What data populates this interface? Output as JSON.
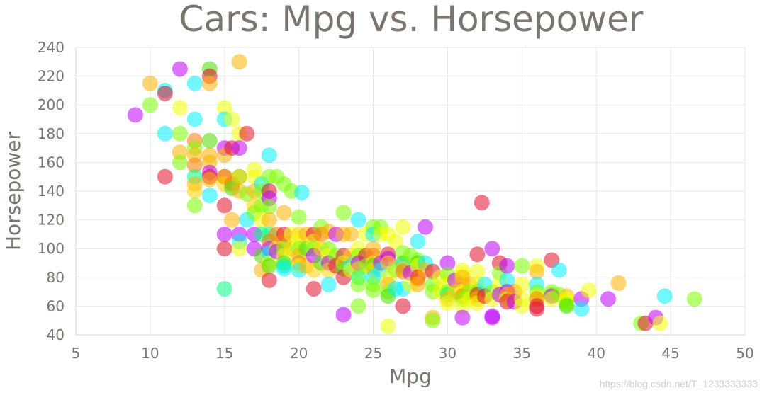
{
  "chart_data": {
    "type": "scatter",
    "title": "Cars: Mpg vs. Horsepower",
    "xlabel": "Mpg",
    "ylabel": "Horsepower",
    "xlim": [
      5,
      50
    ],
    "ylim": [
      40,
      240
    ],
    "xticks": [
      5,
      10,
      15,
      20,
      25,
      30,
      35,
      40,
      45,
      50
    ],
    "yticks": [
      40,
      60,
      80,
      100,
      120,
      140,
      160,
      180,
      200,
      220,
      240
    ],
    "grid": true,
    "marker_opacity": 0.55,
    "palette": [
      "#ff7a00",
      "#ffb000",
      "#ffd400",
      "#f0ff00",
      "#7aff00",
      "#4bdc00",
      "#00ff80",
      "#00f0ff",
      "#c000ff",
      "#e0102a"
    ],
    "points": [
      [
        9,
        193,
        8
      ],
      [
        10,
        215,
        1
      ],
      [
        10,
        200,
        4
      ],
      [
        11,
        210,
        7
      ],
      [
        11,
        208,
        9
      ],
      [
        11,
        180,
        7
      ],
      [
        11,
        150,
        9
      ],
      [
        12,
        225,
        8
      ],
      [
        12,
        198,
        3
      ],
      [
        12,
        180,
        4
      ],
      [
        12,
        167,
        1
      ],
      [
        12,
        160,
        4
      ],
      [
        13,
        215,
        7
      ],
      [
        13,
        190,
        7
      ],
      [
        13,
        175,
        0
      ],
      [
        13,
        170,
        4
      ],
      [
        13,
        165,
        1
      ],
      [
        13,
        158,
        0
      ],
      [
        13,
        150,
        6
      ],
      [
        13,
        145,
        1
      ],
      [
        13,
        140,
        2
      ],
      [
        13,
        130,
        4
      ],
      [
        14,
        225,
        5
      ],
      [
        14,
        220,
        9
      ],
      [
        14,
        215,
        1
      ],
      [
        14,
        175,
        5
      ],
      [
        14,
        165,
        1
      ],
      [
        14,
        160,
        1
      ],
      [
        14,
        153,
        8
      ],
      [
        14,
        150,
        9
      ],
      [
        14,
        148,
        1
      ],
      [
        14,
        137,
        7
      ],
      [
        15,
        198,
        3
      ],
      [
        15,
        190,
        7
      ],
      [
        15,
        170,
        8
      ],
      [
        15,
        165,
        1
      ],
      [
        15,
        150,
        9
      ],
      [
        15,
        150,
        1
      ],
      [
        15,
        145,
        2
      ],
      [
        15,
        130,
        9
      ],
      [
        15,
        110,
        8
      ],
      [
        15,
        100,
        9
      ],
      [
        15,
        72,
        6
      ],
      [
        15.5,
        190,
        3
      ],
      [
        15.5,
        170,
        9
      ],
      [
        15.5,
        145,
        0
      ],
      [
        15.5,
        142,
        5
      ],
      [
        15.5,
        120,
        1
      ],
      [
        16,
        230,
        1
      ],
      [
        16,
        180,
        3
      ],
      [
        16,
        170,
        8
      ],
      [
        16,
        150,
        5
      ],
      [
        16,
        150,
        2
      ],
      [
        16,
        140,
        1
      ],
      [
        16,
        110,
        8
      ],
      [
        16,
        105,
        7
      ],
      [
        16,
        100,
        3
      ],
      [
        16.5,
        180,
        9
      ],
      [
        16.5,
        138,
        4
      ],
      [
        16.5,
        120,
        7
      ],
      [
        17,
        155,
        3
      ],
      [
        17,
        150,
        3
      ],
      [
        17,
        140,
        1
      ],
      [
        17,
        130,
        2
      ],
      [
        17,
        125,
        4
      ],
      [
        17,
        110,
        8
      ],
      [
        17,
        100,
        8
      ],
      [
        17.5,
        145,
        7
      ],
      [
        17.5,
        140,
        4
      ],
      [
        17.5,
        130,
        4
      ],
      [
        17.5,
        120,
        3
      ],
      [
        17.5,
        110,
        6
      ],
      [
        17.5,
        95,
        5
      ],
      [
        17.5,
        85,
        1
      ],
      [
        18,
        165,
        7
      ],
      [
        18,
        150,
        4
      ],
      [
        18,
        140,
        9
      ],
      [
        18,
        135,
        8
      ],
      [
        18,
        129,
        4
      ],
      [
        18,
        120,
        1
      ],
      [
        18,
        110,
        6
      ],
      [
        18,
        105,
        0
      ],
      [
        18,
        100,
        8
      ],
      [
        18,
        97,
        7
      ],
      [
        18,
        90,
        3
      ],
      [
        18,
        88,
        5
      ],
      [
        18,
        78,
        9
      ],
      [
        18.5,
        150,
        4
      ],
      [
        18.5,
        110,
        0
      ],
      [
        18.5,
        100,
        3
      ],
      [
        18.5,
        98,
        8
      ],
      [
        19,
        145,
        4
      ],
      [
        19,
        125,
        1
      ],
      [
        19,
        110,
        9
      ],
      [
        19,
        105,
        0
      ],
      [
        19,
        100,
        4
      ],
      [
        19,
        95,
        3
      ],
      [
        19,
        90,
        5
      ],
      [
        19,
        88,
        6
      ],
      [
        19,
        86,
        7
      ],
      [
        19.5,
        140,
        4
      ],
      [
        19.5,
        110,
        3
      ],
      [
        19.5,
        100,
        2
      ],
      [
        20,
        122,
        4
      ],
      [
        20,
        110,
        2
      ],
      [
        20,
        105,
        3
      ],
      [
        20,
        100,
        4
      ],
      [
        20,
        95,
        1
      ],
      [
        20,
        90,
        0
      ],
      [
        20,
        88,
        3
      ],
      [
        20,
        85,
        7
      ],
      [
        20.2,
        139,
        7
      ],
      [
        20.5,
        110,
        1
      ],
      [
        20.5,
        100,
        5
      ],
      [
        20.5,
        88,
        1
      ],
      [
        21,
        110,
        9
      ],
      [
        21,
        105,
        3
      ],
      [
        21,
        100,
        4
      ],
      [
        21,
        95,
        8
      ],
      [
        21,
        85,
        2
      ],
      [
        21,
        72,
        9
      ],
      [
        21.5,
        115,
        4
      ],
      [
        21.5,
        110,
        0
      ],
      [
        21.5,
        100,
        2
      ],
      [
        21.5,
        90,
        5
      ],
      [
        22,
        112,
        1
      ],
      [
        22,
        100,
        4
      ],
      [
        22,
        95,
        3
      ],
      [
        22,
        90,
        8
      ],
      [
        22,
        85,
        2
      ],
      [
        22,
        75,
        7
      ],
      [
        22.5,
        110,
        8
      ],
      [
        22.5,
        95,
        4
      ],
      [
        22.5,
        88,
        9
      ],
      [
        23,
        125,
        4
      ],
      [
        23,
        110,
        1
      ],
      [
        23,
        95,
        9
      ],
      [
        23,
        90,
        3
      ],
      [
        23,
        86,
        5
      ],
      [
        23,
        80,
        9
      ],
      [
        23,
        54,
        8
      ],
      [
        23.5,
        110,
        1
      ],
      [
        23.5,
        95,
        2
      ],
      [
        23.5,
        88,
        7
      ],
      [
        23.5,
        85,
        3
      ],
      [
        24,
        120,
        7
      ],
      [
        24,
        100,
        3
      ],
      [
        24,
        95,
        4
      ],
      [
        24,
        90,
        8
      ],
      [
        24,
        86,
        2
      ],
      [
        24,
        80,
        6
      ],
      [
        24,
        75,
        4
      ],
      [
        24,
        60,
        4
      ],
      [
        24.5,
        110,
        3
      ],
      [
        24.5,
        95,
        9
      ],
      [
        24.5,
        88,
        4
      ],
      [
        25,
        115,
        4
      ],
      [
        25,
        110,
        7
      ],
      [
        25,
        100,
        1
      ],
      [
        25,
        95,
        0
      ],
      [
        25,
        90,
        3
      ],
      [
        25,
        88,
        5
      ],
      [
        25,
        85,
        2
      ],
      [
        25,
        80,
        7
      ],
      [
        25,
        75,
        4
      ],
      [
        25,
        71,
        4
      ],
      [
        25.5,
        115,
        4
      ],
      [
        25.5,
        110,
        3
      ],
      [
        25.5,
        90,
        8
      ],
      [
        25.5,
        85,
        7
      ],
      [
        26,
        110,
        3
      ],
      [
        26,
        96,
        9
      ],
      [
        26,
        93,
        8
      ],
      [
        26,
        90,
        2
      ],
      [
        26,
        80,
        3
      ],
      [
        26,
        75,
        1
      ],
      [
        26,
        70,
        4
      ],
      [
        26,
        67,
        5
      ],
      [
        26,
        46,
        3
      ],
      [
        26.5,
        105,
        3
      ],
      [
        26.5,
        85,
        4
      ],
      [
        26.5,
        72,
        7
      ],
      [
        27,
        115,
        3
      ],
      [
        27,
        97,
        4
      ],
      [
        27,
        90,
        5
      ],
      [
        27,
        88,
        7
      ],
      [
        27,
        86,
        2
      ],
      [
        27,
        84,
        0
      ],
      [
        27,
        72,
        7
      ],
      [
        27,
        60,
        9
      ],
      [
        27.5,
        95,
        4
      ],
      [
        27.5,
        83,
        8
      ],
      [
        27.5,
        75,
        3
      ],
      [
        28,
        105,
        7
      ],
      [
        28,
        92,
        4
      ],
      [
        28,
        90,
        5
      ],
      [
        28,
        88,
        3
      ],
      [
        28,
        80,
        9
      ],
      [
        28,
        79,
        0
      ],
      [
        28,
        75,
        1
      ],
      [
        28.5,
        90,
        7
      ],
      [
        28.5,
        115,
        8
      ],
      [
        28.5,
        85,
        1
      ],
      [
        29,
        84,
        9
      ],
      [
        29,
        75,
        4
      ],
      [
        29,
        70,
        4
      ],
      [
        29,
        52,
        1
      ],
      [
        29,
        50,
        4
      ],
      [
        29.5,
        80,
        3
      ],
      [
        29.5,
        70,
        3
      ],
      [
        30,
        90,
        8
      ],
      [
        30,
        82,
        4
      ],
      [
        30,
        75,
        3
      ],
      [
        30,
        70,
        4
      ],
      [
        30,
        68,
        6
      ],
      [
        30,
        65,
        1
      ],
      [
        30,
        62,
        3
      ],
      [
        30.5,
        78,
        8
      ],
      [
        30.5,
        70,
        2
      ],
      [
        31,
        85,
        3
      ],
      [
        31,
        82,
        3
      ],
      [
        31,
        80,
        1
      ],
      [
        31,
        75,
        1
      ],
      [
        31,
        70,
        3
      ],
      [
        31,
        67,
        0
      ],
      [
        31,
        65,
        4
      ],
      [
        31,
        60,
        3
      ],
      [
        31,
        52,
        8
      ],
      [
        31.5,
        75,
        1
      ],
      [
        31.5,
        70,
        4
      ],
      [
        31.5,
        65,
        3
      ],
      [
        32,
        96,
        9
      ],
      [
        32,
        84,
        3
      ],
      [
        32,
        75,
        3
      ],
      [
        32,
        70,
        4
      ],
      [
        32,
        68,
        9
      ],
      [
        32,
        65,
        1
      ],
      [
        32,
        62,
        3
      ],
      [
        32.3,
        132,
        9
      ],
      [
        32.5,
        75,
        7
      ],
      [
        32.5,
        67,
        9
      ],
      [
        33,
        100,
        8
      ],
      [
        33,
        70,
        4
      ],
      [
        33,
        65,
        3
      ],
      [
        33,
        53,
        8
      ],
      [
        33,
        52,
        8
      ],
      [
        33.5,
        90,
        9
      ],
      [
        33.5,
        83,
        4
      ],
      [
        33.5,
        75,
        3
      ],
      [
        33.5,
        68,
        8
      ],
      [
        34,
        88,
        8
      ],
      [
        34,
        78,
        7
      ],
      [
        34,
        70,
        8
      ],
      [
        34,
        68,
        1
      ],
      [
        34,
        65,
        3
      ],
      [
        34,
        63,
        9
      ],
      [
        34.5,
        70,
        0
      ],
      [
        34.5,
        63,
        8
      ],
      [
        35,
        88,
        4
      ],
      [
        35,
        75,
        3
      ],
      [
        35,
        65,
        3
      ],
      [
        35,
        60,
        3
      ],
      [
        36,
        88,
        3
      ],
      [
        36,
        84,
        1
      ],
      [
        36,
        75,
        7
      ],
      [
        36,
        70,
        4
      ],
      [
        36,
        67,
        3
      ],
      [
        36,
        65,
        0
      ],
      [
        36,
        60,
        9
      ],
      [
        36,
        58,
        9
      ],
      [
        37,
        92,
        9
      ],
      [
        37,
        70,
        4
      ],
      [
        37,
        68,
        4
      ],
      [
        37,
        67,
        8
      ],
      [
        37,
        65,
        3
      ],
      [
        37.5,
        85,
        7
      ],
      [
        37.5,
        68,
        4
      ],
      [
        38,
        67,
        1
      ],
      [
        38,
        65,
        3
      ],
      [
        38,
        63,
        3
      ],
      [
        38,
        61,
        4
      ],
      [
        38,
        60,
        5
      ],
      [
        39,
        65,
        8
      ],
      [
        39,
        58,
        7
      ],
      [
        39.5,
        71,
        3
      ],
      [
        40.8,
        65,
        8
      ],
      [
        41.5,
        76,
        1
      ],
      [
        43,
        48,
        4
      ],
      [
        43.3,
        48,
        9
      ],
      [
        44,
        52,
        8
      ],
      [
        44.3,
        48,
        3
      ],
      [
        44.6,
        67,
        7
      ],
      [
        46.6,
        65,
        4
      ]
    ]
  },
  "watermark": "https://blog.csdn.net/T_1233333333"
}
